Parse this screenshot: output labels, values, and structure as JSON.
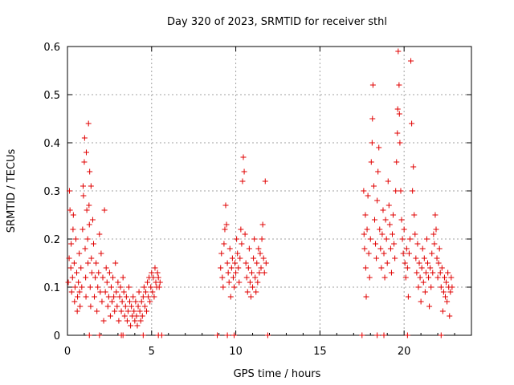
{
  "chart_data": {
    "type": "scatter",
    "title": "Day 320 of 2023, SRMTID for receiver sthl",
    "xlabel": "GPS time / hours",
    "ylabel": "SRMTID / TECUs",
    "xlim": [
      0,
      24
    ],
    "ylim": [
      0,
      0.6
    ],
    "xticks": [
      0,
      5,
      10,
      15,
      20
    ],
    "xtick_labels": [
      "0",
      "5",
      "10",
      "15",
      "20"
    ],
    "yticks": [
      0,
      0.1,
      0.2,
      0.3,
      0.4,
      0.5,
      0.6
    ],
    "ytick_labels": [
      "0",
      "0.1",
      "0.2",
      "0.3",
      "0.4",
      "0.5",
      "0.6"
    ],
    "grid": true,
    "marker": "+",
    "color": "#e00000",
    "series": [
      {
        "name": "SRMTID",
        "points": [
          [
            0.05,
            0.11
          ],
          [
            0.1,
            0.16
          ],
          [
            0.12,
            0.3
          ],
          [
            0.15,
            0.26
          ],
          [
            0.2,
            0.14
          ],
          [
            0.22,
            0.19
          ],
          [
            0.25,
            0.09
          ],
          [
            0.3,
            0.12
          ],
          [
            0.33,
            0.22
          ],
          [
            0.35,
            0.25
          ],
          [
            0.4,
            0.15
          ],
          [
            0.42,
            0.07
          ],
          [
            0.45,
            0.1
          ],
          [
            0.5,
            0.2
          ],
          [
            0.55,
            0.13
          ],
          [
            0.58,
            0.05
          ],
          [
            0.6,
            0.08
          ],
          [
            0.65,
            0.11
          ],
          [
            0.7,
            0.17
          ],
          [
            0.72,
            0.09
          ],
          [
            0.75,
            0.06
          ],
          [
            0.8,
            0.14
          ],
          [
            0.85,
            0.1
          ],
          [
            0.9,
            0.22
          ],
          [
            0.93,
            0.31
          ],
          [
            0.95,
            0.29
          ],
          [
            1.0,
            0.36
          ],
          [
            1.02,
            0.41
          ],
          [
            1.05,
            0.18
          ],
          [
            1.08,
            0.12
          ],
          [
            1.1,
            0.08
          ],
          [
            1.12,
            0.38
          ],
          [
            1.15,
            0.26
          ],
          [
            1.2,
            0.2
          ],
          [
            1.22,
            0.15
          ],
          [
            1.25,
            0.44
          ],
          [
            1.28,
            0.27
          ],
          [
            1.3,
            0.23
          ],
          [
            1.32,
            0.34
          ],
          [
            1.35,
            0.1
          ],
          [
            1.38,
            0.06
          ],
          [
            1.4,
            0.31
          ],
          [
            1.42,
            0.16
          ],
          [
            1.45,
            0.13
          ],
          [
            1.5,
            0.24
          ],
          [
            1.55,
            0.19
          ],
          [
            1.6,
            0.08
          ],
          [
            1.65,
            0.12
          ],
          [
            1.7,
            0.15
          ],
          [
            1.75,
            0.05
          ],
          [
            1.8,
            0.1
          ],
          [
            1.85,
            0.13
          ],
          [
            1.9,
            0.21
          ],
          [
            1.95,
            0.09
          ],
          [
            2.0,
            0.17
          ],
          [
            2.05,
            0.07
          ],
          [
            2.1,
            0.12
          ],
          [
            2.15,
            0.03
          ],
          [
            2.2,
            0.26
          ],
          [
            2.25,
            0.09
          ],
          [
            2.3,
            0.14
          ],
          [
            2.35,
            0.11
          ],
          [
            2.4,
            0.06
          ],
          [
            2.45,
            0.08
          ],
          [
            2.5,
            0.13
          ],
          [
            2.55,
            0.04
          ],
          [
            2.6,
            0.1
          ],
          [
            2.65,
            0.07
          ],
          [
            2.7,
            0.12
          ],
          [
            2.75,
            0.08
          ],
          [
            2.8,
            0.05
          ],
          [
            2.85,
            0.15
          ],
          [
            2.9,
            0.09
          ],
          [
            2.95,
            0.06
          ],
          [
            3.0,
            0.11
          ],
          [
            3.05,
            0.03
          ],
          [
            3.1,
            0.08
          ],
          [
            3.15,
            0.1
          ],
          [
            3.2,
            0.05
          ],
          [
            3.25,
            0.07
          ],
          [
            3.3,
            0.12
          ],
          [
            3.35,
            0.09
          ],
          [
            3.4,
            0.04
          ],
          [
            3.45,
            0.06
          ],
          [
            3.5,
            0.08
          ],
          [
            3.55,
            0.03
          ],
          [
            3.6,
            0.05
          ],
          [
            3.65,
            0.1
          ],
          [
            3.7,
            0.07
          ],
          [
            3.75,
            0.02
          ],
          [
            3.8,
            0.06
          ],
          [
            3.85,
            0.04
          ],
          [
            3.9,
            0.08
          ],
          [
            3.95,
            0.05
          ],
          [
            4.0,
            0.03
          ],
          [
            4.05,
            0.07
          ],
          [
            4.1,
            0.04
          ],
          [
            4.15,
            0.02
          ],
          [
            4.2,
            0.06
          ],
          [
            4.25,
            0.09
          ],
          [
            4.3,
            0.05
          ],
          [
            4.35,
            0.03
          ],
          [
            4.4,
            0.07
          ],
          [
            4.45,
            0.04
          ],
          [
            4.5,
            0.08
          ],
          [
            4.55,
            0.1
          ],
          [
            4.6,
            0.06
          ],
          [
            4.65,
            0.09
          ],
          [
            4.7,
            0.05
          ],
          [
            4.75,
            0.11
          ],
          [
            4.8,
            0.08
          ],
          [
            4.85,
            0.12
          ],
          [
            4.9,
            0.07
          ],
          [
            4.95,
            0.1
          ],
          [
            5.0,
            0.13
          ],
          [
            5.05,
            0.09
          ],
          [
            5.1,
            0.12
          ],
          [
            5.15,
            0.08
          ],
          [
            5.2,
            0.14
          ],
          [
            5.25,
            0.11
          ],
          [
            5.3,
            0.1
          ],
          [
            5.35,
            0.13
          ],
          [
            5.4,
            0.12
          ],
          [
            5.45,
            0.1
          ],
          [
            5.5,
            0.11
          ],
          [
            1.3,
            0.0
          ],
          [
            1.9,
            0.0
          ],
          [
            3.2,
            0.0
          ],
          [
            3.3,
            0.0
          ],
          [
            4.5,
            0.0
          ],
          [
            5.4,
            0.0
          ],
          [
            5.6,
            0.0
          ],
          [
            8.9,
            0.0
          ],
          [
            9.1,
            0.14
          ],
          [
            9.15,
            0.17
          ],
          [
            9.2,
            0.12
          ],
          [
            9.25,
            0.1
          ],
          [
            9.3,
            0.19
          ],
          [
            9.35,
            0.22
          ],
          [
            9.4,
            0.27
          ],
          [
            9.45,
            0.23
          ],
          [
            9.5,
            0.15
          ],
          [
            9.55,
            0.13
          ],
          [
            9.6,
            0.11
          ],
          [
            9.65,
            0.18
          ],
          [
            9.7,
            0.08
          ],
          [
            9.75,
            0.14
          ],
          [
            9.8,
            0.16
          ],
          [
            9.85,
            0.12
          ],
          [
            9.9,
            0.1
          ],
          [
            9.95,
            0.15
          ],
          [
            10.0,
            0.13
          ],
          [
            10.05,
            0.2
          ],
          [
            10.1,
            0.17
          ],
          [
            10.15,
            0.14
          ],
          [
            10.2,
            0.11
          ],
          [
            10.25,
            0.16
          ],
          [
            10.3,
            0.22
          ],
          [
            10.35,
            0.19
          ],
          [
            10.4,
            0.32
          ],
          [
            10.45,
            0.37
          ],
          [
            10.5,
            0.34
          ],
          [
            10.55,
            0.21
          ],
          [
            10.6,
            0.15
          ],
          [
            10.65,
            0.12
          ],
          [
            10.7,
            0.09
          ],
          [
            10.75,
            0.14
          ],
          [
            10.8,
            0.18
          ],
          [
            10.85,
            0.11
          ],
          [
            10.9,
            0.08
          ],
          [
            10.95,
            0.13
          ],
          [
            11.0,
            0.1
          ],
          [
            11.05,
            0.16
          ],
          [
            11.1,
            0.2
          ],
          [
            11.15,
            0.12
          ],
          [
            11.2,
            0.09
          ],
          [
            11.25,
            0.15
          ],
          [
            11.3,
            0.11
          ],
          [
            11.35,
            0.18
          ],
          [
            11.4,
            0.13
          ],
          [
            11.45,
            0.17
          ],
          [
            11.5,
            0.14
          ],
          [
            11.55,
            0.2
          ],
          [
            11.6,
            0.23
          ],
          [
            11.65,
            0.16
          ],
          [
            11.7,
            0.13
          ],
          [
            11.75,
            0.32
          ],
          [
            11.8,
            0.15
          ],
          [
            9.5,
            0.0
          ],
          [
            9.9,
            0.0
          ],
          [
            11.9,
            0.0
          ],
          [
            17.5,
            0.0
          ],
          [
            17.6,
            0.3
          ],
          [
            17.62,
            0.21
          ],
          [
            17.65,
            0.18
          ],
          [
            17.7,
            0.25
          ],
          [
            17.72,
            0.14
          ],
          [
            17.75,
            0.08
          ],
          [
            17.8,
            0.22
          ],
          [
            17.85,
            0.29
          ],
          [
            17.9,
            0.17
          ],
          [
            17.95,
            0.12
          ],
          [
            18.0,
            0.2
          ],
          [
            18.05,
            0.36
          ],
          [
            18.1,
            0.4
          ],
          [
            18.12,
            0.45
          ],
          [
            18.15,
            0.52
          ],
          [
            18.2,
            0.31
          ],
          [
            18.25,
            0.24
          ],
          [
            18.3,
            0.19
          ],
          [
            18.35,
            0.16
          ],
          [
            18.4,
            0.28
          ],
          [
            18.45,
            0.34
          ],
          [
            18.5,
            0.39
          ],
          [
            18.55,
            0.22
          ],
          [
            18.6,
            0.18
          ],
          [
            18.65,
            0.14
          ],
          [
            18.7,
            0.21
          ],
          [
            18.75,
            0.26
          ],
          [
            18.8,
            0.17
          ],
          [
            18.85,
            0.12
          ],
          [
            18.9,
            0.24
          ],
          [
            18.95,
            0.2
          ],
          [
            19.0,
            0.15
          ],
          [
            19.05,
            0.32
          ],
          [
            19.1,
            0.27
          ],
          [
            19.15,
            0.23
          ],
          [
            19.2,
            0.18
          ],
          [
            19.25,
            0.13
          ],
          [
            19.3,
            0.21
          ],
          [
            19.35,
            0.25
          ],
          [
            19.4,
            0.19
          ],
          [
            19.45,
            0.16
          ],
          [
            19.5,
            0.3
          ],
          [
            19.55,
            0.36
          ],
          [
            19.6,
            0.42
          ],
          [
            19.62,
            0.47
          ],
          [
            19.65,
            0.59
          ],
          [
            19.7,
            0.52
          ],
          [
            19.72,
            0.46
          ],
          [
            19.75,
            0.4
          ],
          [
            19.8,
            0.3
          ],
          [
            19.85,
            0.24
          ],
          [
            19.9,
            0.2
          ],
          [
            19.95,
            0.17
          ],
          [
            20.0,
            0.22
          ],
          [
            20.05,
            0.15
          ],
          [
            20.1,
            0.12
          ],
          [
            20.15,
            0.18
          ],
          [
            20.2,
            0.14
          ],
          [
            20.25,
            0.08
          ],
          [
            20.3,
            0.17
          ],
          [
            20.35,
            0.2
          ],
          [
            20.4,
            0.57
          ],
          [
            20.45,
            0.44
          ],
          [
            20.5,
            0.3
          ],
          [
            20.55,
            0.35
          ],
          [
            20.6,
            0.25
          ],
          [
            20.65,
            0.21
          ],
          [
            20.7,
            0.16
          ],
          [
            20.75,
            0.13
          ],
          [
            20.8,
            0.19
          ],
          [
            20.85,
            0.1
          ],
          [
            20.9,
            0.15
          ],
          [
            20.95,
            0.12
          ],
          [
            21.0,
            0.07
          ],
          [
            21.05,
            0.14
          ],
          [
            21.1,
            0.18
          ],
          [
            21.15,
            0.11
          ],
          [
            21.2,
            0.16
          ],
          [
            21.25,
            0.09
          ],
          [
            21.3,
            0.13
          ],
          [
            21.35,
            0.2
          ],
          [
            21.4,
            0.15
          ],
          [
            21.45,
            0.12
          ],
          [
            21.5,
            0.06
          ],
          [
            21.55,
            0.14
          ],
          [
            21.6,
            0.1
          ],
          [
            21.65,
            0.17
          ],
          [
            21.7,
            0.13
          ],
          [
            21.75,
            0.21
          ],
          [
            21.8,
            0.19
          ],
          [
            21.85,
            0.25
          ],
          [
            21.9,
            0.22
          ],
          [
            21.95,
            0.16
          ],
          [
            22.0,
            0.12
          ],
          [
            22.05,
            0.15
          ],
          [
            22.1,
            0.18
          ],
          [
            22.15,
            0.13
          ],
          [
            22.2,
            0.1
          ],
          [
            22.25,
            0.14
          ],
          [
            22.3,
            0.05
          ],
          [
            22.35,
            0.09
          ],
          [
            22.4,
            0.12
          ],
          [
            22.45,
            0.08
          ],
          [
            22.5,
            0.11
          ],
          [
            22.55,
            0.07
          ],
          [
            22.6,
            0.13
          ],
          [
            22.65,
            0.1
          ],
          [
            22.7,
            0.04
          ],
          [
            22.75,
            0.09
          ],
          [
            22.8,
            0.12
          ],
          [
            22.85,
            0.1
          ],
          [
            18.4,
            0.0
          ],
          [
            18.8,
            0.0
          ],
          [
            20.2,
            0.0
          ],
          [
            22.2,
            0.0
          ]
        ]
      }
    ]
  }
}
